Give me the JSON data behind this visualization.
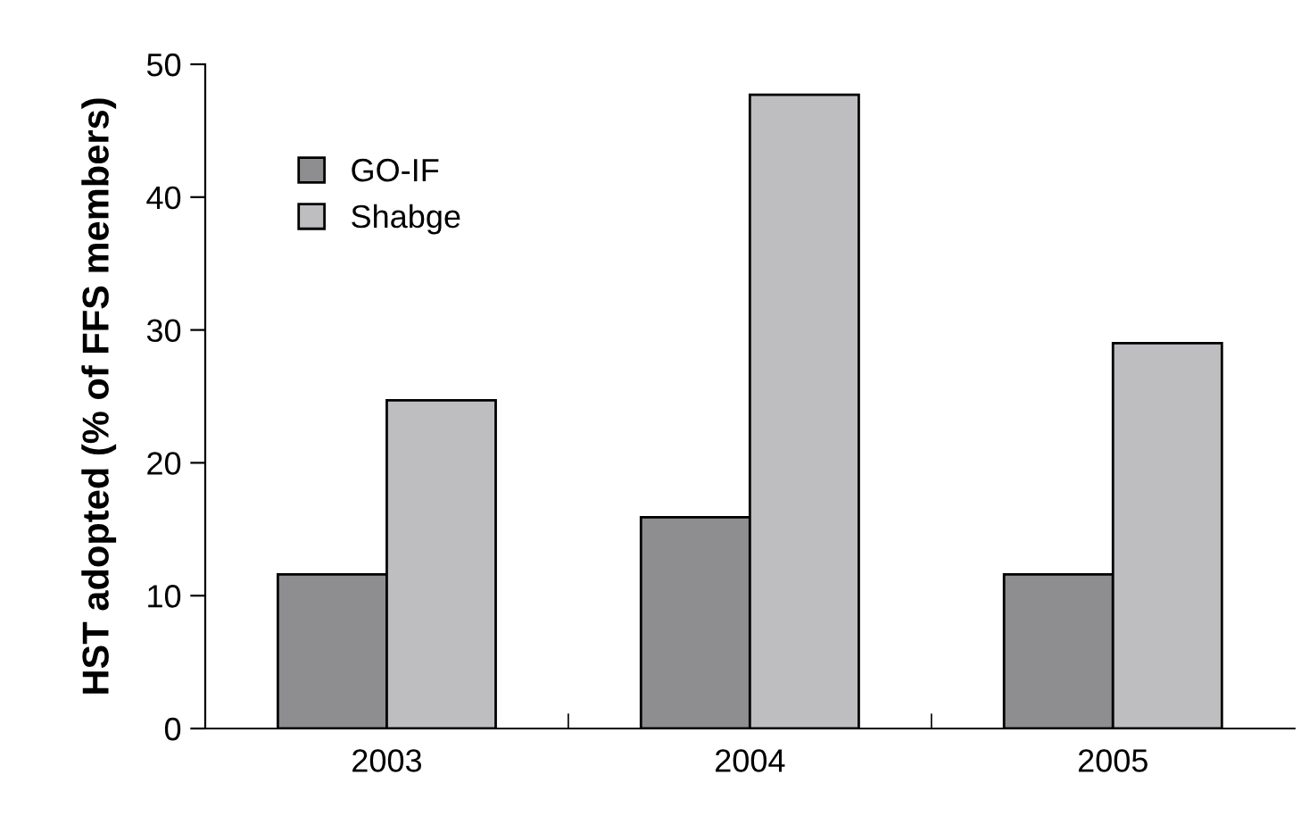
{
  "chart_data": {
    "type": "bar",
    "ylabel": "HST adopted (% of FFS members)",
    "categories": [
      "2003",
      "2004",
      "2005"
    ],
    "series": [
      {
        "name": "GO-IF",
        "color": "#8e8e91",
        "values": [
          11.6,
          15.9,
          11.6
        ]
      },
      {
        "name": "Shabge",
        "color": "#bebec1",
        "values": [
          24.7,
          47.7,
          29.0
        ]
      }
    ],
    "ylim": [
      0,
      50
    ],
    "yticks": [
      0,
      10,
      20,
      30,
      40,
      50
    ],
    "grid": false,
    "legend": "top left"
  }
}
